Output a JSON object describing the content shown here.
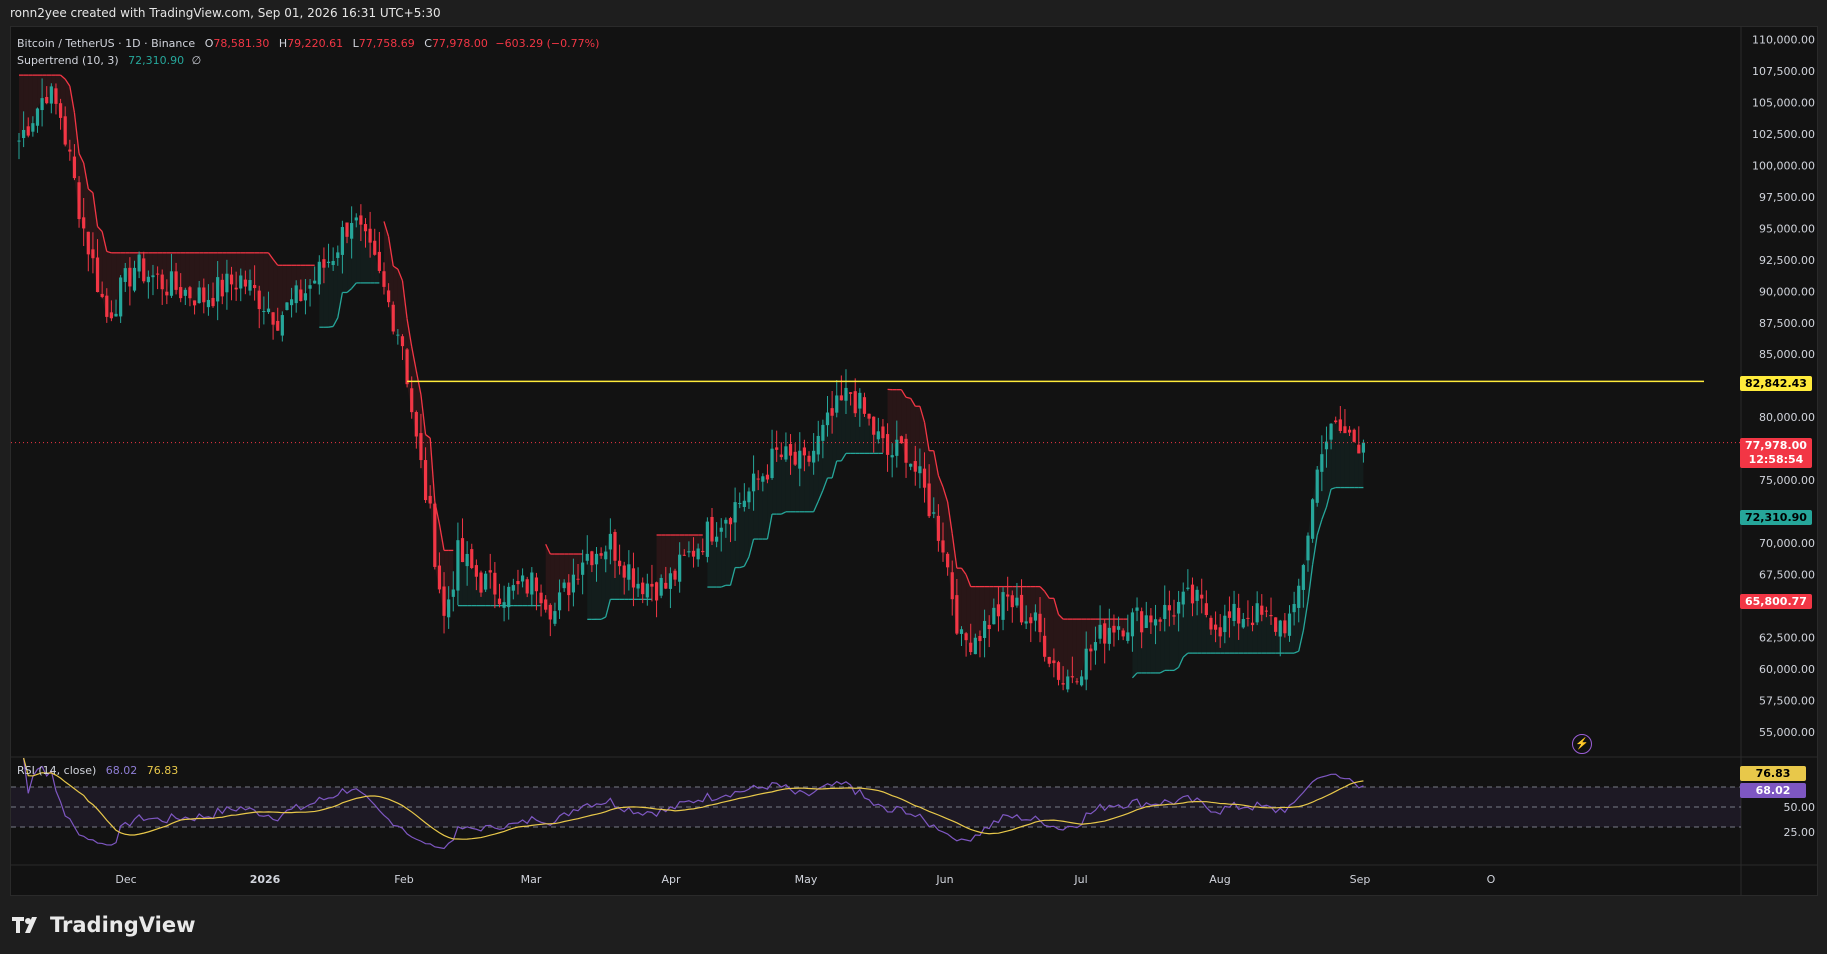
{
  "header": {
    "attribution": "ronn2yee created with TradingView.com, Sep 01, 2026 16:31 UTC+5:30"
  },
  "legend": {
    "symbol": "Bitcoin / TetherUS · 1D · Binance",
    "open_label": "O",
    "open": "78,581.30",
    "high_label": "H",
    "high": "79,220.61",
    "low_label": "L",
    "low": "77,758.69",
    "close_label": "C",
    "close": "77,978.00",
    "change": "−603.29 (−0.77%)",
    "supertrend_label": "Supertrend (10, 3)",
    "supertrend_value": "72,310.90",
    "supertrend_extra": "∅"
  },
  "rsi_legend": {
    "label": "RSI (14, close)",
    "rsi": "68.02",
    "ma": "76.83"
  },
  "price_axis": [
    "110,000.00",
    "107,500.00",
    "105,000.00",
    "102,500.00",
    "100,000.00",
    "97,500.00",
    "95,000.00",
    "92,500.00",
    "90,000.00",
    "87,500.00",
    "85,000.00",
    "82,842.43",
    "80,000.00",
    "77,978.00",
    "75,000.00",
    "72,310.90",
    "70,000.00",
    "67,500.00",
    "65,800.77",
    "62,500.00",
    "60,000.00",
    "57,500.00",
    "55,000.00"
  ],
  "tags": {
    "resistance": "82,842.43",
    "last_price": "77,978.00",
    "countdown": "12:58:54",
    "supertrend": "72,310.90",
    "lower_red": "65,800.77",
    "rsi_ma": "76.83",
    "rsi_value": "68.02"
  },
  "rsi_axis": [
    "50.00",
    "25.00"
  ],
  "time_axis": [
    "Dec",
    "2026",
    "Feb",
    "Mar",
    "Apr",
    "May",
    "Jun",
    "Jul",
    "Aug",
    "Sep",
    "O"
  ],
  "brand": {
    "name": "TradingView"
  },
  "colors": {
    "up": "#26a69a",
    "down": "#f23645",
    "resistance": "#ffeb3b",
    "rsi": "#7e57c2",
    "rsi_ma": "#e8c84a",
    "bg": "#121212"
  },
  "icons": {
    "alert": "lightning-icon",
    "logo": "tradingview-logo-icon"
  },
  "chart_data": {
    "type": "candlestick",
    "title": "Bitcoin / TetherUS · 1D · Binance",
    "ylim": [
      53000,
      111000
    ],
    "resistance_level": 82842.43,
    "last_price": 77978.0,
    "supertrend": {
      "params": "10, 3",
      "value": 72310.9
    },
    "rsi": {
      "length": 14,
      "value": 68.02,
      "ma": 76.83,
      "levels": [
        70,
        50,
        30
      ]
    },
    "key_points": [
      {
        "t": 0,
        "p": 102000
      },
      {
        "t": 6,
        "p": 106000
      },
      {
        "t": 9,
        "p": 104000
      },
      {
        "t": 14,
        "p": 95000
      },
      {
        "t": 19,
        "p": 88000
      },
      {
        "t": 25,
        "p": 92000
      },
      {
        "t": 32,
        "p": 90500
      },
      {
        "t": 40,
        "p": 89500
      },
      {
        "t": 48,
        "p": 91000
      },
      {
        "t": 56,
        "p": 88000
      },
      {
        "t": 62,
        "p": 90000
      },
      {
        "t": 68,
        "p": 93000
      },
      {
        "t": 72,
        "p": 96000
      },
      {
        "t": 77,
        "p": 92000
      },
      {
        "t": 80,
        "p": 89000
      },
      {
        "t": 83,
        "p": 86000
      },
      {
        "t": 86,
        "p": 78000
      },
      {
        "t": 89,
        "p": 72000
      },
      {
        "t": 92,
        "p": 64000
      },
      {
        "t": 95,
        "p": 69000
      },
      {
        "t": 100,
        "p": 67000
      },
      {
        "t": 106,
        "p": 66000
      },
      {
        "t": 112,
        "p": 67000
      },
      {
        "t": 116,
        "p": 64500
      },
      {
        "t": 122,
        "p": 69000
      },
      {
        "t": 128,
        "p": 70000
      },
      {
        "t": 134,
        "p": 67000
      },
      {
        "t": 140,
        "p": 66500
      },
      {
        "t": 146,
        "p": 69500
      },
      {
        "t": 152,
        "p": 72000
      },
      {
        "t": 158,
        "p": 74000
      },
      {
        "t": 164,
        "p": 77000
      },
      {
        "t": 170,
        "p": 76000
      },
      {
        "t": 176,
        "p": 80000
      },
      {
        "t": 180,
        "p": 82000
      },
      {
        "t": 184,
        "p": 79500
      },
      {
        "t": 188,
        "p": 77000
      },
      {
        "t": 192,
        "p": 77500
      },
      {
        "t": 196,
        "p": 74000
      },
      {
        "t": 200,
        "p": 70000
      },
      {
        "t": 204,
        "p": 62000
      },
      {
        "t": 208,
        "p": 63000
      },
      {
        "t": 214,
        "p": 65500
      },
      {
        "t": 220,
        "p": 63500
      },
      {
        "t": 226,
        "p": 59000
      },
      {
        "t": 230,
        "p": 60500
      },
      {
        "t": 236,
        "p": 63500
      },
      {
        "t": 242,
        "p": 64000
      },
      {
        "t": 248,
        "p": 64500
      },
      {
        "t": 254,
        "p": 65500
      },
      {
        "t": 260,
        "p": 63500
      },
      {
        "t": 266,
        "p": 64500
      },
      {
        "t": 272,
        "p": 63500
      },
      {
        "t": 276,
        "p": 64000
      },
      {
        "t": 279,
        "p": 71000
      },
      {
        "t": 282,
        "p": 78000
      },
      {
        "t": 285,
        "p": 79000
      },
      {
        "t": 288,
        "p": 78500
      },
      {
        "t": 291,
        "p": 77978
      }
    ]
  }
}
